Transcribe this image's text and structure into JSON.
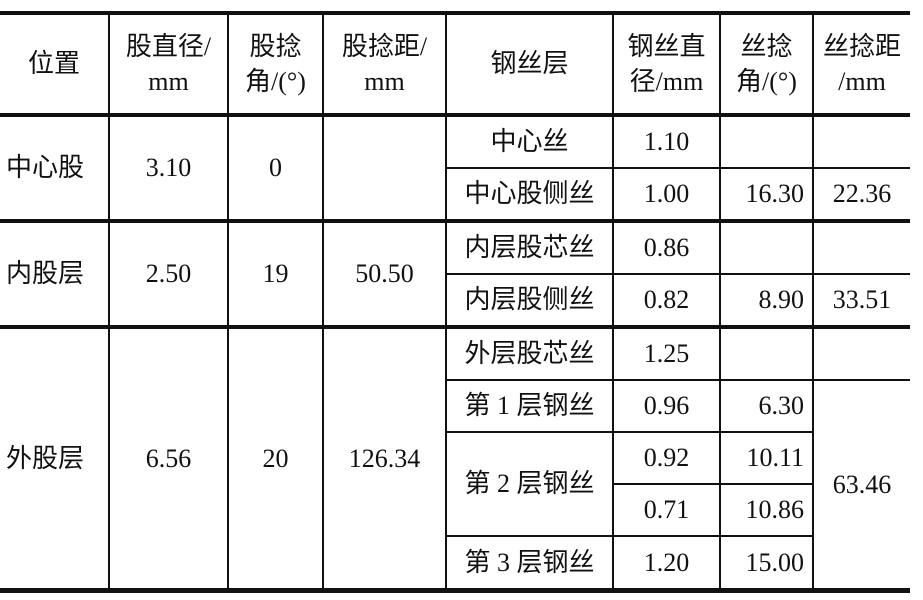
{
  "headers": [
    "位置",
    "股直径/\nmm",
    "股捻\n角/(°)",
    "股捻距/\nmm",
    "钢丝层",
    "钢丝直\n径/mm",
    "丝捻\n角/(°)",
    "丝捻距\n/mm"
  ],
  "header_lines": [
    [
      "位置"
    ],
    [
      "股直径/",
      "mm"
    ],
    [
      "股捻",
      "角/(°)"
    ],
    [
      "股捻距/",
      "mm"
    ],
    [
      "钢丝层"
    ],
    [
      "钢丝直",
      "径/mm"
    ],
    [
      "丝捻",
      "角/(°)"
    ],
    [
      "丝捻距",
      "/mm"
    ]
  ],
  "groups": [
    {
      "position": "中心股",
      "strand_diameter": "3.10",
      "strand_lay_angle": "0",
      "strand_lay_length": "",
      "wires": [
        {
          "layer": "中心丝",
          "diameter": "1.10",
          "lay_angle": "",
          "lay_length": ""
        },
        {
          "layer": "中心股侧丝",
          "diameter": "1.00",
          "lay_angle": "16.30",
          "lay_length": "22.36"
        }
      ]
    },
    {
      "position": "内股层",
      "strand_diameter": "2.50",
      "strand_lay_angle": "19",
      "strand_lay_length": "50.50",
      "wires": [
        {
          "layer": "内层股芯丝",
          "diameter": "0.86",
          "lay_angle": "",
          "lay_length": ""
        },
        {
          "layer": "内层股侧丝",
          "diameter": "0.82",
          "lay_angle": "8.90",
          "lay_length": "33.51"
        }
      ]
    },
    {
      "position": "外股层",
      "strand_diameter": "6.56",
      "strand_lay_angle": "20",
      "strand_lay_length": "126.34",
      "wires": [
        {
          "layer": "外层股芯丝",
          "diameter": "1.25",
          "lay_angle": "",
          "lay_length": ""
        },
        {
          "layer": "第 1 层钢丝",
          "diameter": "0.96",
          "lay_angle": "6.30",
          "lay_length": "63.46"
        },
        {
          "layer": "第 2 层钢丝",
          "diameter": "0.92",
          "lay_angle": "10.11"
        },
        {
          "diameter": "0.71",
          "lay_angle": "10.86"
        },
        {
          "layer": "第 3 层钢丝",
          "diameter": "1.20",
          "lay_angle": "15.00"
        }
      ]
    }
  ]
}
